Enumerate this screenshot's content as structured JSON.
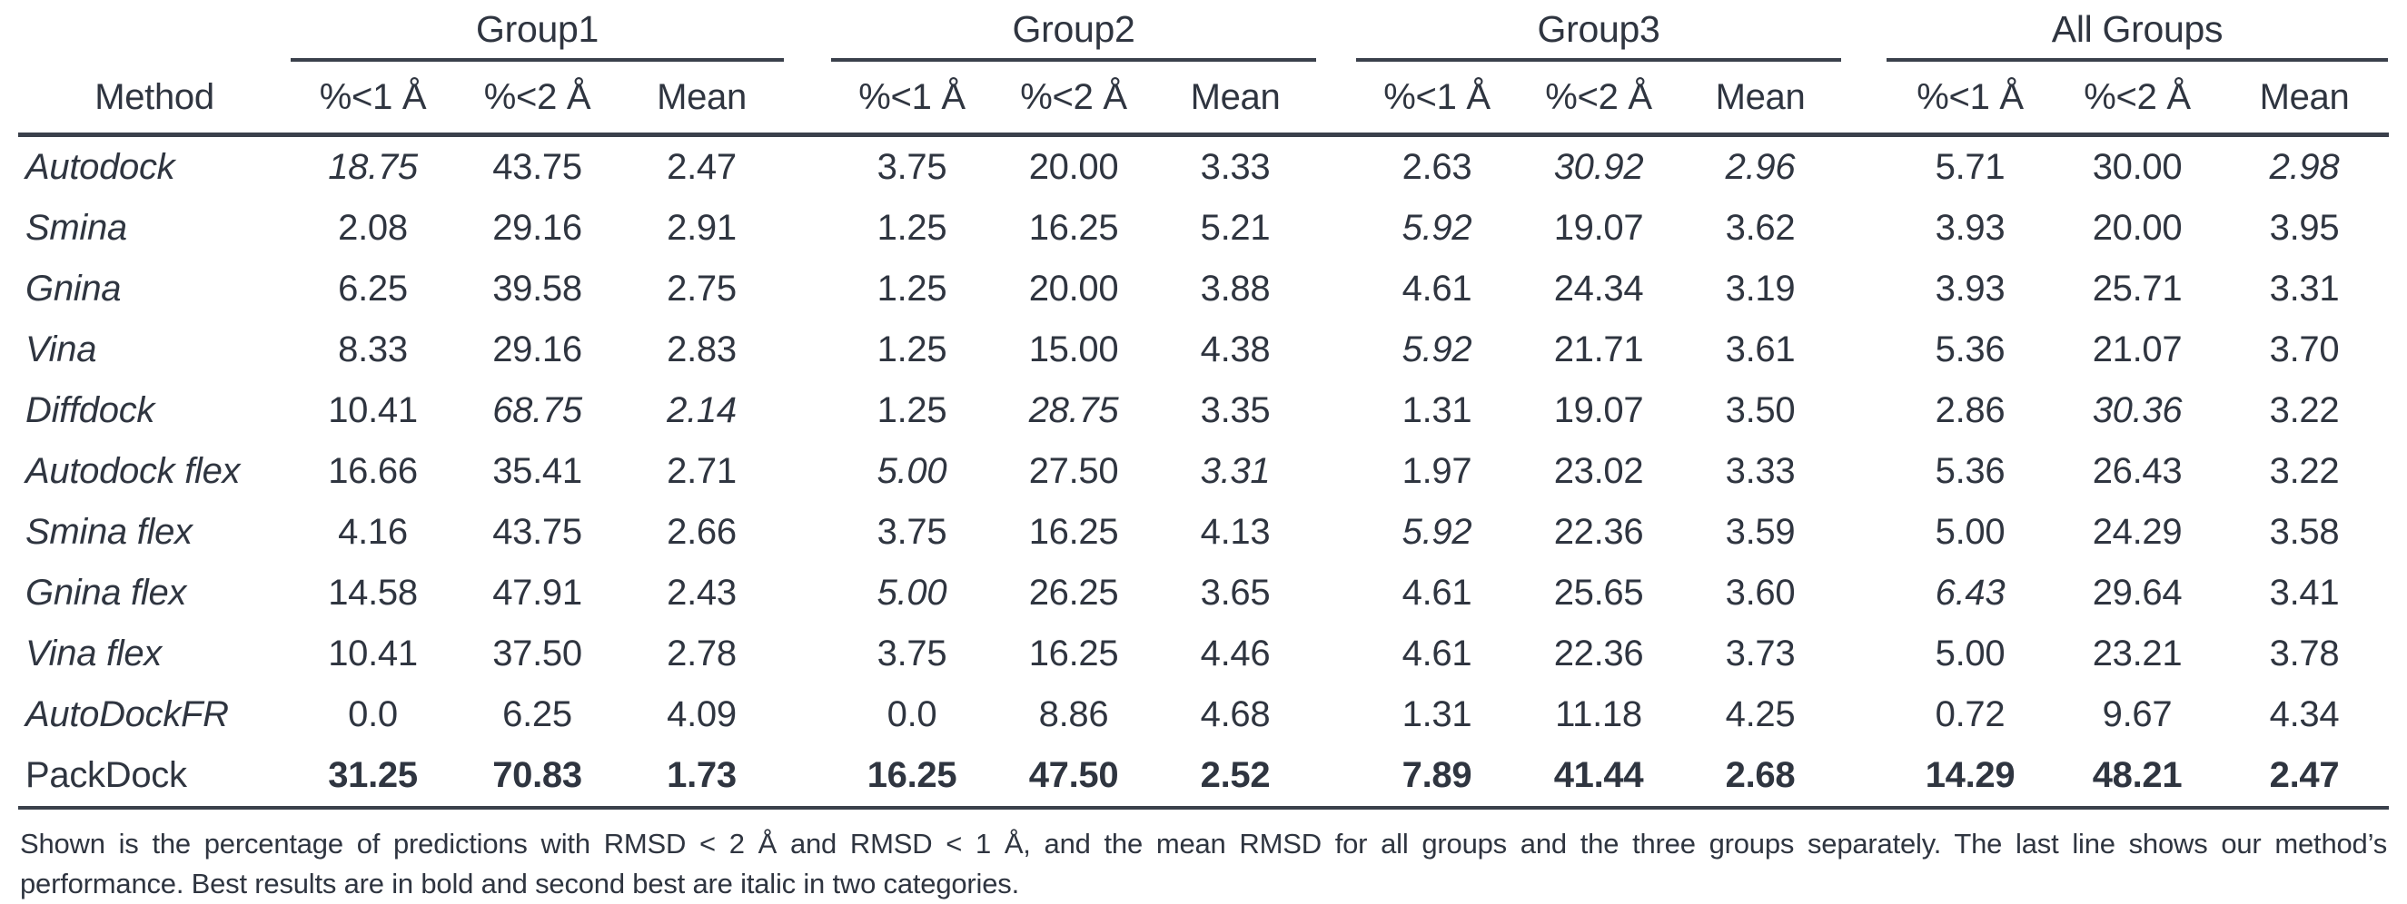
{
  "colors": {
    "text": "#2f3540",
    "rule": "#3a404b"
  },
  "table": {
    "method_header": "Method",
    "groups": [
      {
        "label": "Group1"
      },
      {
        "label": "Group2"
      },
      {
        "label": "Group3"
      },
      {
        "label": "All Groups"
      }
    ],
    "subheaders": [
      "%<1 Å",
      "%<2 Å",
      "Mean"
    ],
    "rows": [
      {
        "method": "Autodock",
        "method_italic": true,
        "values": [
          "18.75",
          "43.75",
          "2.47",
          "3.75",
          "20.00",
          "3.33",
          "2.63",
          "30.92",
          "2.96",
          "5.71",
          "30.00",
          "2.98"
        ],
        "styles": [
          "i",
          "",
          "",
          "",
          "",
          "",
          "",
          "i",
          "i",
          "",
          "",
          "i"
        ]
      },
      {
        "method": "Smina",
        "method_italic": true,
        "values": [
          "2.08",
          "29.16",
          "2.91",
          "1.25",
          "16.25",
          "5.21",
          "5.92",
          "19.07",
          "3.62",
          "3.93",
          "20.00",
          "3.95"
        ],
        "styles": [
          "",
          "",
          "",
          "",
          "",
          "",
          "i",
          "",
          "",
          "",
          "",
          ""
        ]
      },
      {
        "method": "Gnina",
        "method_italic": true,
        "values": [
          "6.25",
          "39.58",
          "2.75",
          "1.25",
          "20.00",
          "3.88",
          "4.61",
          "24.34",
          "3.19",
          "3.93",
          "25.71",
          "3.31"
        ],
        "styles": [
          "",
          "",
          "",
          "",
          "",
          "",
          "",
          "",
          "",
          "",
          "",
          ""
        ]
      },
      {
        "method": "Vina",
        "method_italic": true,
        "values": [
          "8.33",
          "29.16",
          "2.83",
          "1.25",
          "15.00",
          "4.38",
          "5.92",
          "21.71",
          "3.61",
          "5.36",
          "21.07",
          "3.70"
        ],
        "styles": [
          "",
          "",
          "",
          "",
          "",
          "",
          "i",
          "",
          "",
          "",
          "",
          ""
        ]
      },
      {
        "method": "Diffdock",
        "method_italic": true,
        "values": [
          "10.41",
          "68.75",
          "2.14",
          "1.25",
          "28.75",
          "3.35",
          "1.31",
          "19.07",
          "3.50",
          "2.86",
          "30.36",
          "3.22"
        ],
        "styles": [
          "",
          "i",
          "i",
          "",
          "i",
          "",
          "",
          "",
          "",
          "",
          "i",
          ""
        ]
      },
      {
        "method": "Autodock flex",
        "method_italic": true,
        "values": [
          "16.66",
          "35.41",
          "2.71",
          "5.00",
          "27.50",
          "3.31",
          "1.97",
          "23.02",
          "3.33",
          "5.36",
          "26.43",
          "3.22"
        ],
        "styles": [
          "",
          "",
          "",
          "i",
          "",
          "i",
          "",
          "",
          "",
          "",
          "",
          ""
        ]
      },
      {
        "method": "Smina flex",
        "method_italic": true,
        "values": [
          "4.16",
          "43.75",
          "2.66",
          "3.75",
          "16.25",
          "4.13",
          "5.92",
          "22.36",
          "3.59",
          "5.00",
          "24.29",
          "3.58"
        ],
        "styles": [
          "",
          "",
          "",
          "",
          "",
          "",
          "i",
          "",
          "",
          "",
          "",
          ""
        ]
      },
      {
        "method": "Gnina flex",
        "method_italic": true,
        "values": [
          "14.58",
          "47.91",
          "2.43",
          "5.00",
          "26.25",
          "3.65",
          "4.61",
          "25.65",
          "3.60",
          "6.43",
          "29.64",
          "3.41"
        ],
        "styles": [
          "",
          "",
          "",
          "i",
          "",
          "",
          "",
          "",
          "",
          "i",
          "",
          ""
        ]
      },
      {
        "method": "Vina flex",
        "method_italic": true,
        "values": [
          "10.41",
          "37.50",
          "2.78",
          "3.75",
          "16.25",
          "4.46",
          "4.61",
          "22.36",
          "3.73",
          "5.00",
          "23.21",
          "3.78"
        ],
        "styles": [
          "",
          "",
          "",
          "",
          "",
          "",
          "",
          "",
          "",
          "",
          "",
          ""
        ]
      },
      {
        "method": "AutoDockFR",
        "method_italic": true,
        "values": [
          "0.0",
          "6.25",
          "4.09",
          "0.0",
          "8.86",
          "4.68",
          "1.31",
          "11.18",
          "4.25",
          "0.72",
          "9.67",
          "4.34"
        ],
        "styles": [
          "",
          "",
          "",
          "",
          "",
          "",
          "",
          "",
          "",
          "",
          "",
          ""
        ]
      },
      {
        "method": "PackDock",
        "method_italic": false,
        "values": [
          "31.25",
          "70.83",
          "1.73",
          "16.25",
          "47.50",
          "2.52",
          "7.89",
          "41.44",
          "2.68",
          "14.29",
          "48.21",
          "2.47"
        ],
        "styles": [
          "b",
          "b",
          "b",
          "b",
          "b",
          "b",
          "b",
          "b",
          "b",
          "b",
          "b",
          "b"
        ]
      }
    ]
  },
  "caption": {
    "lines": [
      "Shown is the percentage of predictions with RMSD < 2 Å and RMSD < 1 Å, and the mean RMSD for all groups and the three groups separately. The last line shows our method’s",
      "performance. Best results are in bold and second best are italic in two categories."
    ]
  }
}
